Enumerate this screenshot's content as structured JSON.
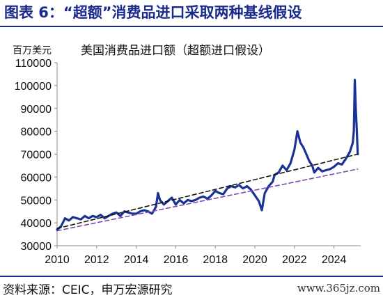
{
  "header": {
    "title": "图表 6：“超额”消费品进口采取两种基线假设"
  },
  "footer": {
    "source": "资料来源：CEIC，申万宏源研究",
    "watermark": "www.365jz.com"
  },
  "chart_data": {
    "type": "line",
    "title": "美国消费品进口额（超额进口假设）",
    "unit_label": "百万美元",
    "xlabel": "",
    "ylabel": "",
    "xlim": [
      2010,
      2025.35
    ],
    "ylim": [
      30000,
      110000
    ],
    "x_ticks": [
      "2010",
      "2012",
      "2014",
      "2016",
      "2018",
      "2020",
      "2022",
      "2024"
    ],
    "y_ticks": [
      "30000",
      "40000",
      "50000",
      "60000",
      "70000",
      "80000",
      "90000",
      "100000",
      "110000"
    ],
    "grid": false,
    "legend": "none",
    "colors": {
      "imports": "#1a3296",
      "baseline_linear": "#111111",
      "baseline_trend": "#7b4ab0",
      "title": "#1a2a8c"
    },
    "series": [
      {
        "key": "imports",
        "style": "solid",
        "x": [
          2010.0,
          2010.2,
          2010.4,
          2010.6,
          2010.8,
          2011.0,
          2011.2,
          2011.4,
          2011.6,
          2011.8,
          2012.0,
          2012.2,
          2012.4,
          2012.6,
          2012.8,
          2013.0,
          2013.2,
          2013.4,
          2013.6,
          2013.8,
          2014.0,
          2014.2,
          2014.4,
          2014.6,
          2014.8,
          2015.0,
          2015.1,
          2015.2,
          2015.4,
          2015.6,
          2015.8,
          2016.0,
          2016.2,
          2016.4,
          2016.6,
          2016.8,
          2017.0,
          2017.2,
          2017.4,
          2017.6,
          2017.8,
          2018.0,
          2018.2,
          2018.4,
          2018.6,
          2018.8,
          2019.0,
          2019.2,
          2019.4,
          2019.6,
          2019.8,
          2020.0,
          2020.2,
          2020.35,
          2020.5,
          2020.7,
          2020.9,
          2021.0,
          2021.2,
          2021.4,
          2021.6,
          2021.8,
          2022.0,
          2022.15,
          2022.3,
          2022.45,
          2022.6,
          2022.75,
          2022.9,
          2023.0,
          2023.2,
          2023.4,
          2023.6,
          2023.8,
          2024.0,
          2024.2,
          2024.4,
          2024.6,
          2024.8,
          2024.95,
          2025.0,
          2025.05,
          2025.1,
          2025.15,
          2025.2
        ],
        "y": [
          37000,
          38500,
          42000,
          41000,
          42500,
          42000,
          41500,
          43000,
          42000,
          43000,
          42500,
          43500,
          42000,
          43000,
          44000,
          44500,
          43000,
          45000,
          44500,
          44000,
          44000,
          45000,
          45500,
          45000,
          44000,
          47000,
          53000,
          50000,
          48000,
          49500,
          51000,
          48000,
          50000,
          48500,
          50000,
          49500,
          50000,
          51000,
          51500,
          50500,
          52000,
          54000,
          53000,
          52500,
          55000,
          56000,
          55500,
          56500,
          55000,
          56000,
          54500,
          52000,
          49500,
          45500,
          53000,
          56000,
          58000,
          61000,
          62000,
          65000,
          63000,
          66000,
          72000,
          80000,
          75000,
          73000,
          70000,
          67000,
          65000,
          62000,
          64000,
          62500,
          63000,
          63500,
          64500,
          66000,
          65500,
          68000,
          71000,
          75000,
          80000,
          102500,
          90000,
          81000,
          70000
        ]
      },
      {
        "key": "baseline_linear",
        "style": "dashed",
        "x": [
          2010.0,
          2025.2
        ],
        "y": [
          37500,
          70000
        ]
      },
      {
        "key": "baseline_trend",
        "style": "dashed",
        "x": [
          2010.0,
          2025.2
        ],
        "y": [
          36500,
          63500
        ]
      }
    ]
  }
}
